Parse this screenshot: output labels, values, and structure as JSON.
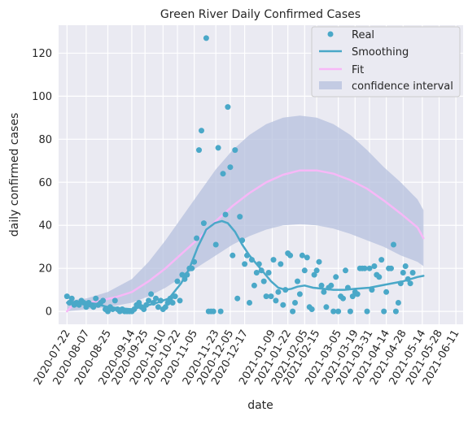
{
  "chart_data": {
    "type": "scatter",
    "title": "Green River Daily Confirmed Cases",
    "xlabel": "date",
    "ylabel": "daily confirmed cases",
    "x_range": [
      "2020-07-15",
      "2021-06-17"
    ],
    "ylim": [
      -6,
      133
    ],
    "y_ticks": [
      0,
      20,
      40,
      60,
      80,
      100,
      120
    ],
    "x_ticks": [
      "2020-07-22",
      "2020-08-07",
      "2020-08-25",
      "2020-09-14",
      "2020-09-25",
      "2020-10-10",
      "2020-10-22",
      "2020-11-05",
      "2020-11-23",
      "2020-12-05",
      "2020-12-17",
      "2021-01-09",
      "2021-01-22",
      "2021-02-05",
      "2021-02-15",
      "2021-03-05",
      "2021-03-19",
      "2021-03-31",
      "2021-04-14",
      "2021-04-28",
      "2021-05-14",
      "2021-05-28",
      "2021-06-11"
    ],
    "grid": true,
    "legend_position": "top-right",
    "colors": {
      "background": "#eaeaf2",
      "grid": "#ffffff",
      "real": "#4aa8c8",
      "smoothing": "#4aa8c8",
      "fit": "#f7b8f7",
      "confidence_interval": "#b6c0dd"
    },
    "legend": [
      "Real",
      "Smoothing",
      "Fit",
      "confidence interval"
    ],
    "series": [
      {
        "name": "Real",
        "kind": "points",
        "points": [
          [
            "2020-07-22",
            7
          ],
          [
            "2020-07-24",
            4
          ],
          [
            "2020-07-26",
            6
          ],
          [
            "2020-07-28",
            3
          ],
          [
            "2020-07-30",
            4
          ],
          [
            "2020-08-01",
            3
          ],
          [
            "2020-08-03",
            5
          ],
          [
            "2020-08-05",
            4
          ],
          [
            "2020-08-07",
            2
          ],
          [
            "2020-08-09",
            4
          ],
          [
            "2020-08-11",
            3
          ],
          [
            "2020-08-13",
            2
          ],
          [
            "2020-08-15",
            6
          ],
          [
            "2020-08-17",
            3
          ],
          [
            "2020-08-19",
            4
          ],
          [
            "2020-08-21",
            5
          ],
          [
            "2020-08-23",
            1
          ],
          [
            "2020-08-25",
            0
          ],
          [
            "2020-08-27",
            2
          ],
          [
            "2020-08-29",
            1
          ],
          [
            "2020-08-31",
            5
          ],
          [
            "2020-09-02",
            1
          ],
          [
            "2020-09-04",
            0
          ],
          [
            "2020-09-06",
            1
          ],
          [
            "2020-09-08",
            0
          ],
          [
            "2020-09-10",
            0
          ],
          [
            "2020-09-12",
            0
          ],
          [
            "2020-09-14",
            0
          ],
          [
            "2020-09-16",
            1
          ],
          [
            "2020-09-18",
            3
          ],
          [
            "2020-09-20",
            4
          ],
          [
            "2020-09-22",
            2
          ],
          [
            "2020-09-24",
            1
          ],
          [
            "2020-09-26",
            3
          ],
          [
            "2020-09-28",
            5
          ],
          [
            "2020-09-30",
            8
          ],
          [
            "2020-10-02",
            4
          ],
          [
            "2020-10-04",
            6
          ],
          [
            "2020-10-06",
            2
          ],
          [
            "2020-10-08",
            5
          ],
          [
            "2020-10-10",
            1
          ],
          [
            "2020-10-12",
            2
          ],
          [
            "2020-10-14",
            4
          ],
          [
            "2020-10-16",
            6
          ],
          [
            "2020-10-18",
            4
          ],
          [
            "2020-10-20",
            7
          ],
          [
            "2020-10-22",
            14
          ],
          [
            "2020-10-24",
            5
          ],
          [
            "2020-10-26",
            17
          ],
          [
            "2020-10-28",
            15
          ],
          [
            "2020-10-30",
            17
          ],
          [
            "2020-11-01",
            20
          ],
          [
            "2020-11-03",
            20
          ],
          [
            "2020-11-05",
            23
          ],
          [
            "2020-11-07",
            34
          ],
          [
            "2020-11-09",
            75
          ],
          [
            "2020-11-11",
            84
          ],
          [
            "2020-11-13",
            41
          ],
          [
            "2020-11-15",
            127
          ],
          [
            "2020-11-17",
            0
          ],
          [
            "2020-11-19",
            0
          ],
          [
            "2020-11-21",
            0
          ],
          [
            "2020-11-23",
            31
          ],
          [
            "2020-11-25",
            76
          ],
          [
            "2020-11-27",
            0
          ],
          [
            "2020-11-29",
            64
          ],
          [
            "2020-12-01",
            45
          ],
          [
            "2020-12-03",
            95
          ],
          [
            "2020-12-05",
            67
          ],
          [
            "2020-12-07",
            26
          ],
          [
            "2020-12-09",
            75
          ],
          [
            "2020-12-11",
            6
          ],
          [
            "2020-12-13",
            44
          ],
          [
            "2020-12-15",
            33
          ],
          [
            "2020-12-17",
            22
          ],
          [
            "2020-12-19",
            26
          ],
          [
            "2020-12-21",
            4
          ],
          [
            "2020-12-23",
            24
          ],
          [
            "2020-12-25",
            12
          ],
          [
            "2020-12-27",
            18
          ],
          [
            "2020-12-29",
            22
          ],
          [
            "2020-12-31",
            19
          ],
          [
            "2021-01-02",
            14
          ],
          [
            "2021-01-04",
            7
          ],
          [
            "2021-01-06",
            18
          ],
          [
            "2021-01-08",
            7
          ],
          [
            "2021-01-10",
            24
          ],
          [
            "2021-01-12",
            5
          ],
          [
            "2021-01-14",
            9
          ],
          [
            "2021-01-16",
            22
          ],
          [
            "2021-01-18",
            3
          ],
          [
            "2021-01-20",
            10
          ],
          [
            "2021-01-22",
            27
          ],
          [
            "2021-01-24",
            26
          ],
          [
            "2021-01-26",
            0
          ],
          [
            "2021-01-28",
            4
          ],
          [
            "2021-01-30",
            14
          ],
          [
            "2021-02-01",
            8
          ],
          [
            "2021-02-03",
            26
          ],
          [
            "2021-02-05",
            19
          ],
          [
            "2021-02-07",
            25
          ],
          [
            "2021-02-09",
            2
          ],
          [
            "2021-02-11",
            1
          ],
          [
            "2021-02-13",
            17
          ],
          [
            "2021-02-15",
            19
          ],
          [
            "2021-02-17",
            23
          ],
          [
            "2021-02-19",
            12
          ],
          [
            "2021-02-21",
            9
          ],
          [
            "2021-02-23",
            2
          ],
          [
            "2021-02-25",
            11
          ],
          [
            "2021-02-27",
            12
          ],
          [
            "2021-03-01",
            0
          ],
          [
            "2021-03-03",
            16
          ],
          [
            "2021-03-05",
            0
          ],
          [
            "2021-03-07",
            7
          ],
          [
            "2021-03-09",
            6
          ],
          [
            "2021-03-11",
            19
          ],
          [
            "2021-03-13",
            11
          ],
          [
            "2021-03-15",
            0
          ],
          [
            "2021-03-17",
            7
          ],
          [
            "2021-03-19",
            9
          ],
          [
            "2021-03-21",
            8
          ],
          [
            "2021-03-23",
            20
          ],
          [
            "2021-03-25",
            20
          ],
          [
            "2021-03-27",
            20
          ],
          [
            "2021-03-29",
            0
          ],
          [
            "2021-03-31",
            20
          ],
          [
            "2021-04-02",
            10
          ],
          [
            "2021-04-04",
            21
          ],
          [
            "2021-04-06",
            17
          ],
          [
            "2021-04-08",
            16
          ],
          [
            "2021-04-10",
            24
          ],
          [
            "2021-04-12",
            0
          ],
          [
            "2021-04-14",
            9
          ],
          [
            "2021-04-16",
            20
          ],
          [
            "2021-04-18",
            20
          ],
          [
            "2021-04-20",
            31
          ],
          [
            "2021-04-22",
            0
          ],
          [
            "2021-04-24",
            4
          ],
          [
            "2021-04-26",
            13
          ],
          [
            "2021-04-28",
            18
          ],
          [
            "2021-04-30",
            21
          ],
          [
            "2021-05-02",
            15
          ],
          [
            "2021-05-04",
            13
          ],
          [
            "2021-05-06",
            18
          ]
        ]
      },
      {
        "name": "Smoothing",
        "kind": "line",
        "points": [
          [
            "2020-07-22",
            4
          ],
          [
            "2020-07-29",
            4.5
          ],
          [
            "2020-08-07",
            4
          ],
          [
            "2020-08-15",
            3.5
          ],
          [
            "2020-08-25",
            2
          ],
          [
            "2020-09-03",
            1.5
          ],
          [
            "2020-09-14",
            1
          ],
          [
            "2020-09-25",
            2.5
          ],
          [
            "2020-10-05",
            4
          ],
          [
            "2020-10-15",
            6
          ],
          [
            "2020-10-25",
            13
          ],
          [
            "2020-11-01",
            20
          ],
          [
            "2020-11-08",
            30
          ],
          [
            "2020-11-15",
            38
          ],
          [
            "2020-11-22",
            41
          ],
          [
            "2020-11-28",
            42
          ],
          [
            "2020-12-03",
            41
          ],
          [
            "2020-12-09",
            37
          ],
          [
            "2020-12-15",
            31
          ],
          [
            "2020-12-21",
            26
          ],
          [
            "2020-12-27",
            22
          ],
          [
            "2021-01-02",
            18
          ],
          [
            "2021-01-08",
            14
          ],
          [
            "2021-01-14",
            11
          ],
          [
            "2021-01-20",
            10
          ],
          [
            "2021-01-25",
            10.5
          ],
          [
            "2021-01-30",
            11.5
          ],
          [
            "2021-02-05",
            12
          ],
          [
            "2021-02-12",
            11
          ],
          [
            "2021-02-20",
            10.5
          ],
          [
            "2021-03-01",
            10
          ],
          [
            "2021-03-10",
            10
          ],
          [
            "2021-03-20",
            10.5
          ],
          [
            "2021-03-31",
            11
          ],
          [
            "2021-04-14",
            12.5
          ],
          [
            "2021-04-28",
            14
          ],
          [
            "2021-05-10",
            16
          ],
          [
            "2021-05-15",
            16.5
          ]
        ]
      },
      {
        "name": "Fit",
        "kind": "line",
        "points": [
          [
            "2020-07-22",
            0
          ],
          [
            "2020-07-27",
            3
          ],
          [
            "2020-08-07",
            3.5
          ],
          [
            "2020-08-18",
            5
          ],
          [
            "2020-08-31",
            6.5
          ],
          [
            "2020-09-14",
            9
          ],
          [
            "2020-09-28",
            14
          ],
          [
            "2020-10-12",
            20
          ],
          [
            "2020-10-26",
            27
          ],
          [
            "2020-11-09",
            34
          ],
          [
            "2020-11-23",
            42
          ],
          [
            "2020-12-07",
            49
          ],
          [
            "2020-12-21",
            55
          ],
          [
            "2021-01-04",
            60
          ],
          [
            "2021-01-18",
            63.5
          ],
          [
            "2021-02-01",
            65.5
          ],
          [
            "2021-02-15",
            65.5
          ],
          [
            "2021-03-01",
            64
          ],
          [
            "2021-03-15",
            61
          ],
          [
            "2021-03-29",
            57
          ],
          [
            "2021-04-12",
            51.5
          ],
          [
            "2021-04-26",
            45.5
          ],
          [
            "2021-05-10",
            39
          ],
          [
            "2021-05-15",
            34
          ]
        ]
      },
      {
        "name": "confidence interval",
        "kind": "band",
        "upper": [
          [
            "2020-07-22",
            5
          ],
          [
            "2020-08-07",
            6
          ],
          [
            "2020-08-25",
            9
          ],
          [
            "2020-09-14",
            15
          ],
          [
            "2020-09-28",
            23
          ],
          [
            "2020-10-12",
            33
          ],
          [
            "2020-10-26",
            44
          ],
          [
            "2020-11-09",
            55
          ],
          [
            "2020-11-23",
            66
          ],
          [
            "2020-12-07",
            75
          ],
          [
            "2020-12-21",
            82
          ],
          [
            "2021-01-04",
            87
          ],
          [
            "2021-01-18",
            90
          ],
          [
            "2021-02-01",
            91
          ],
          [
            "2021-02-15",
            90
          ],
          [
            "2021-03-01",
            87
          ],
          [
            "2021-03-15",
            82
          ],
          [
            "2021-03-29",
            75
          ],
          [
            "2021-04-12",
            67
          ],
          [
            "2021-04-26",
            60
          ],
          [
            "2021-05-10",
            52
          ],
          [
            "2021-05-15",
            47
          ]
        ],
        "lower": [
          [
            "2020-07-22",
            0
          ],
          [
            "2020-08-07",
            1
          ],
          [
            "2020-08-25",
            2
          ],
          [
            "2020-09-14",
            4
          ],
          [
            "2020-09-28",
            7
          ],
          [
            "2020-10-12",
            11
          ],
          [
            "2020-10-26",
            16
          ],
          [
            "2020-11-09",
            21
          ],
          [
            "2020-11-23",
            26
          ],
          [
            "2020-12-07",
            31
          ],
          [
            "2020-12-21",
            35
          ],
          [
            "2021-01-04",
            38
          ],
          [
            "2021-01-18",
            40
          ],
          [
            "2021-02-01",
            40.5
          ],
          [
            "2021-02-15",
            40
          ],
          [
            "2021-03-01",
            38.5
          ],
          [
            "2021-03-15",
            36
          ],
          [
            "2021-03-29",
            33
          ],
          [
            "2021-04-12",
            30
          ],
          [
            "2021-04-26",
            26
          ],
          [
            "2021-05-10",
            23
          ],
          [
            "2021-05-15",
            21
          ]
        ]
      }
    ]
  }
}
